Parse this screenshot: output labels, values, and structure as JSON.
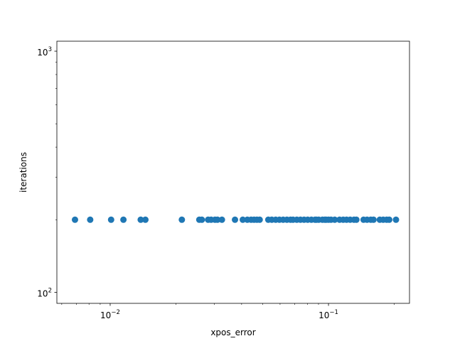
{
  "chart_data": {
    "type": "scatter",
    "xlabel": "xpos_error",
    "ylabel": "iterations",
    "xscale": "log",
    "yscale": "log",
    "xlim": [
      0.0057,
      0.235
    ],
    "ylim": [
      90,
      1100
    ],
    "grid": false,
    "marker_color": "#1f77b4",
    "x_major_ticks": [
      {
        "value": 0.01,
        "base": "10",
        "exp": "−2"
      },
      {
        "value": 0.1,
        "base": "10",
        "exp": "−1"
      }
    ],
    "y_major_ticks": [
      {
        "value": 100,
        "base": "10",
        "exp": "2"
      },
      {
        "value": 1000,
        "base": "10",
        "exp": "3"
      }
    ],
    "x_minor_ticks": [
      0.006,
      0.007,
      0.008,
      0.009,
      0.02,
      0.03,
      0.04,
      0.05,
      0.06,
      0.07,
      0.08,
      0.09,
      0.2
    ],
    "y_minor_ticks": [
      200,
      300,
      400,
      500,
      600,
      700,
      800,
      900
    ],
    "points": {
      "y": 200,
      "x": [
        0.0069,
        0.0081,
        0.0101,
        0.0115,
        0.0138,
        0.0145,
        0.0213,
        0.0256,
        0.0263,
        0.0281,
        0.029,
        0.0302,
        0.031,
        0.0325,
        0.0373,
        0.0405,
        0.0425,
        0.0442,
        0.0456,
        0.047,
        0.0484,
        0.053,
        0.055,
        0.0573,
        0.0596,
        0.062,
        0.0645,
        0.067,
        0.0688,
        0.0716,
        0.0744,
        0.0773,
        0.0803,
        0.0835,
        0.0868,
        0.088,
        0.0902,
        0.0938,
        0.0962,
        0.0975,
        0.1,
        0.1027,
        0.1068,
        0.1124,
        0.1168,
        0.121,
        0.1257,
        0.1309,
        0.1342,
        0.1448,
        0.1502,
        0.1562,
        0.1608,
        0.1718,
        0.1781,
        0.1847,
        0.1898,
        0.2038
      ]
    }
  }
}
